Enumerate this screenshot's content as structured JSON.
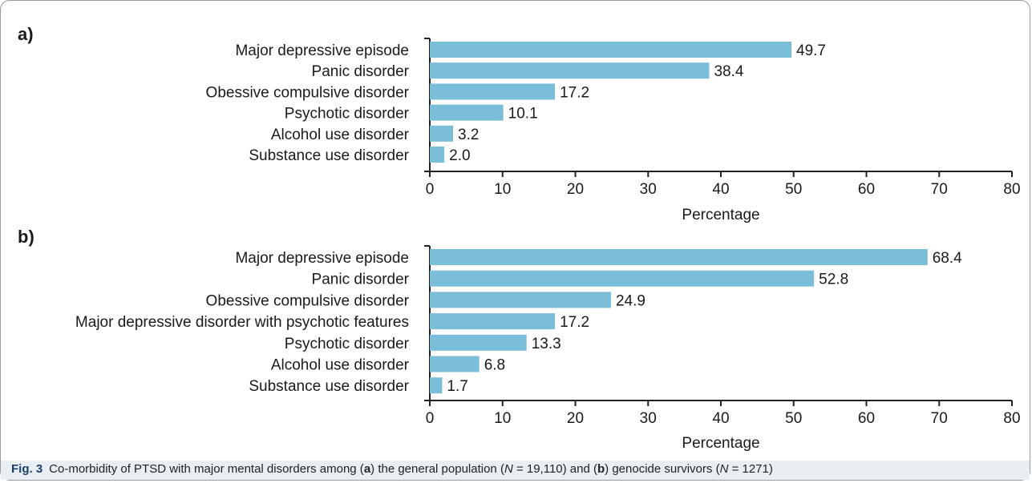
{
  "chart_data": [
    {
      "type": "bar",
      "orientation": "horizontal",
      "panel_label": "a)",
      "categories": [
        "Major depressive episode",
        "Panic disorder",
        "Obessive compulsive disorder",
        "Psychotic disorder",
        "Alcohol use disorder",
        "Substance use disorder"
      ],
      "values": [
        49.7,
        38.4,
        17.2,
        10.1,
        3.2,
        2.0
      ],
      "value_labels": [
        "49.7",
        "38.4",
        "17.2",
        "10.1",
        "3.2",
        "2.0"
      ],
      "xlabel": "Percentage",
      "xlim": [
        0,
        80
      ],
      "xticks": [
        0,
        10,
        20,
        30,
        40,
        50,
        60,
        70,
        80
      ],
      "grid": false,
      "bar_color": "#79bdd9"
    },
    {
      "type": "bar",
      "orientation": "horizontal",
      "panel_label": "b)",
      "categories": [
        "Major depressive episode",
        "Panic disorder",
        "Obessive compulsive disorder",
        "Major depressive disorder with psychotic features",
        "Psychotic disorder",
        "Alcohol use disorder",
        "Substance use disorder"
      ],
      "values": [
        68.4,
        52.8,
        24.9,
        17.2,
        13.3,
        6.8,
        1.7
      ],
      "value_labels": [
        "68.4",
        "52.8",
        "24.9",
        "17.2",
        "13.3",
        "6.8",
        "1.7"
      ],
      "xlabel": "Percentage",
      "xlim": [
        0,
        80
      ],
      "xticks": [
        0,
        10,
        20,
        30,
        40,
        50,
        60,
        70,
        80
      ],
      "grid": false,
      "bar_color": "#79bdd9"
    }
  ],
  "caption": {
    "label": "Fig. 3",
    "parts": [
      {
        "t": "Co-morbidity of PTSD with major mental disorders among ("
      },
      {
        "t": "a",
        "b": true
      },
      {
        "t": ") the general population ("
      },
      {
        "t": "N",
        "i": true
      },
      {
        "t": " = 19,110) and ("
      },
      {
        "t": "b",
        "b": true
      },
      {
        "t": ") genocide survivors ("
      },
      {
        "t": "N",
        "i": true
      },
      {
        "t": " = 1271)"
      }
    ]
  },
  "colors": {
    "caption_background": "#e9eef3",
    "caption_label": "#1a3f6b",
    "axis": "#222222"
  }
}
